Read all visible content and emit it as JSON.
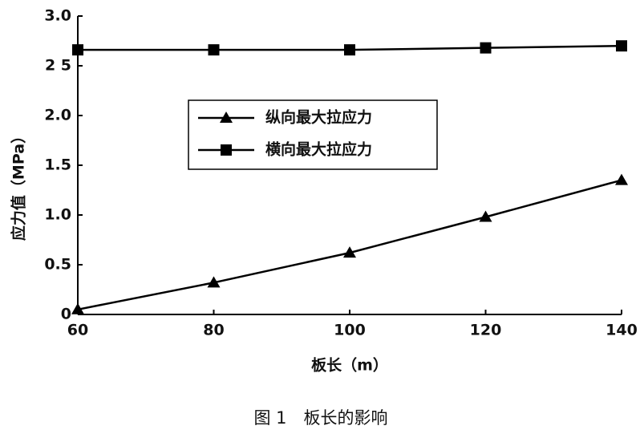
{
  "chart_data": {
    "type": "line",
    "caption": "图 1　板长的影响",
    "xlabel": "板长（m）",
    "ylabel": "应力值（MPa）",
    "x": [
      60,
      80,
      100,
      120,
      140
    ],
    "series": [
      {
        "name": "纵向最大拉应力",
        "color": "#000000",
        "marker": "triangle",
        "values": [
          0.05,
          0.32,
          0.62,
          0.98,
          1.35
        ]
      },
      {
        "name": "横向最大拉应力",
        "color": "#000000",
        "marker": "square",
        "values": [
          2.66,
          2.66,
          2.66,
          2.68,
          2.7
        ]
      }
    ],
    "xlim": [
      60,
      140
    ],
    "xticks": [
      60,
      80,
      100,
      120,
      140
    ],
    "ylim": [
      0,
      3
    ],
    "yticks": [
      0,
      0.5,
      {
        "value": 1,
        "label": "1.0"
      },
      1.5,
      {
        "value": 2,
        "label": "2.0"
      },
      {
        "value": 2.5,
        "label": "2 5"
      },
      {
        "value": 3,
        "label": "3.0"
      }
    ],
    "grid": false,
    "legend": "upper center"
  }
}
